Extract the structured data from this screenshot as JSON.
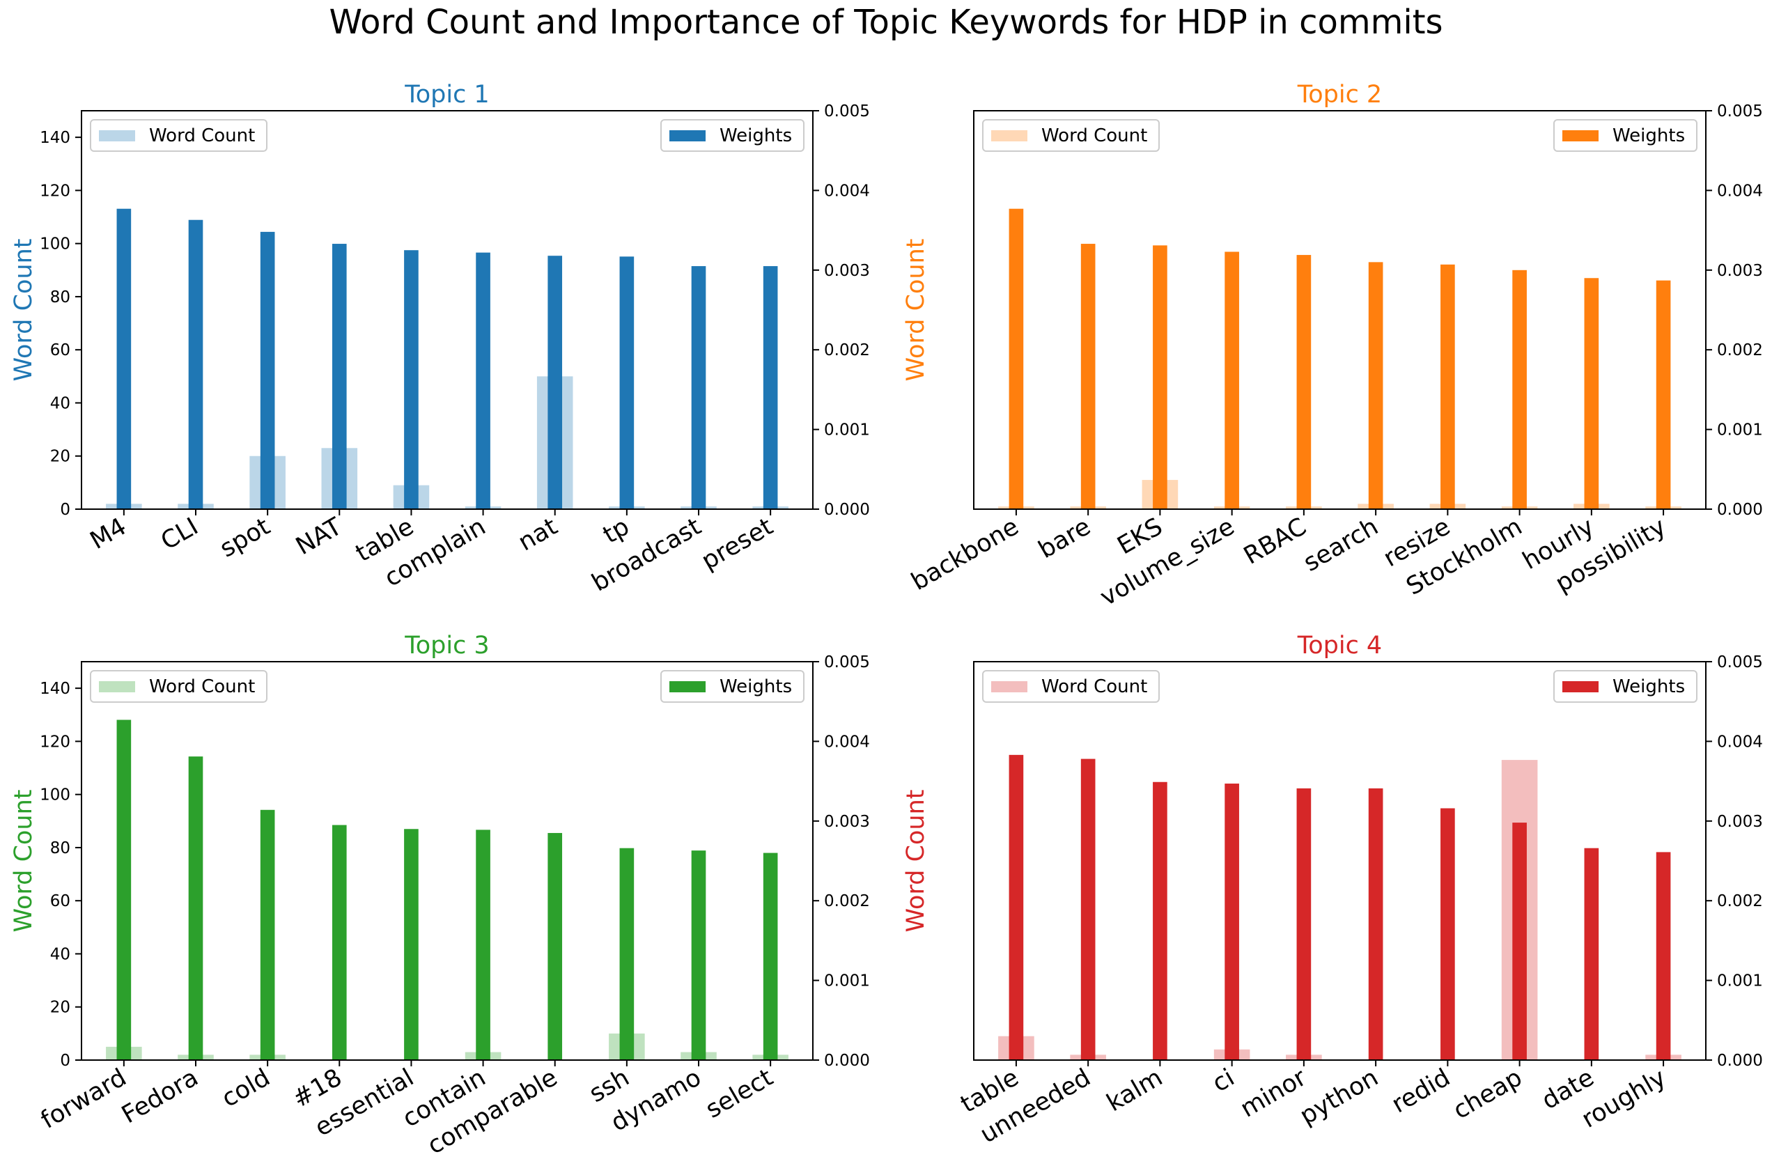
{
  "figure": {
    "title": "Word Count and Importance of Topic Keywords for HDP in commits"
  },
  "chart_data": [
    {
      "type": "bar",
      "title": "Topic 1",
      "color": "#1f77b4",
      "ylabel": "Word Count",
      "ylim": [
        0,
        150
      ],
      "y_ticks": [
        0,
        20,
        40,
        60,
        80,
        100,
        120,
        140
      ],
      "y2lim": [
        0,
        0.005
      ],
      "y2_ticks": [
        "0.000",
        "0.001",
        "0.002",
        "0.003",
        "0.004",
        "0.005"
      ],
      "legend_left": "top-left",
      "legend_right": "top-right",
      "categories": [
        "M4",
        "CLI",
        "spot",
        "NAT",
        "table",
        "complain",
        "nat",
        "tp",
        "broadcast",
        "preset"
      ],
      "series": [
        {
          "name": "Word Count",
          "axis": "left",
          "opacity": 0.3,
          "values": [
            2,
            2,
            20,
            23,
            9,
            1,
            50,
            1,
            1,
            1
          ]
        },
        {
          "name": "Weights",
          "axis": "right",
          "opacity": 1.0,
          "values": [
            0.00377,
            0.00363,
            0.00348,
            0.00333,
            0.00325,
            0.00322,
            0.00318,
            0.00317,
            0.00305,
            0.00305
          ]
        }
      ]
    },
    {
      "type": "bar",
      "title": "Topic 2",
      "color": "#ff7f0e",
      "ylabel": "Word Count",
      "ylim": [
        0,
        150
      ],
      "y_ticks": [],
      "y2lim": [
        0,
        0.005
      ],
      "y2_ticks": [
        "0.000",
        "0.001",
        "0.002",
        "0.003",
        "0.004",
        "0.005"
      ],
      "legend_left": "top-left",
      "legend_right": "top-right",
      "categories": [
        "backbone",
        "bare",
        "EKS",
        "volume_size",
        "RBAC",
        "search",
        "resize",
        "Stockholm",
        "hourly",
        "possibility"
      ],
      "series": [
        {
          "name": "Word Count",
          "axis": "left",
          "opacity": 0.3,
          "values": [
            1,
            1,
            11,
            1,
            1,
            2,
            2,
            1,
            2,
            1
          ]
        },
        {
          "name": "Weights",
          "axis": "right",
          "opacity": 1.0,
          "values": [
            0.00377,
            0.00333,
            0.00331,
            0.00323,
            0.00319,
            0.0031,
            0.00307,
            0.003,
            0.0029,
            0.00287
          ]
        }
      ]
    },
    {
      "type": "bar",
      "title": "Topic 3",
      "color": "#2ca02c",
      "ylabel": "Word Count",
      "ylim": [
        0,
        150
      ],
      "y_ticks": [
        0,
        20,
        40,
        60,
        80,
        100,
        120,
        140
      ],
      "y2lim": [
        0,
        0.005
      ],
      "y2_ticks": [
        "0.000",
        "0.001",
        "0.002",
        "0.003",
        "0.004",
        "0.005"
      ],
      "legend_left": "top-left",
      "legend_right": "top-right",
      "categories": [
        "forward",
        "Fedora",
        "cold",
        "#18",
        "essential",
        "contain",
        "comparable",
        "ssh",
        "dynamo",
        "select"
      ],
      "series": [
        {
          "name": "Word Count",
          "axis": "left",
          "opacity": 0.3,
          "values": [
            5,
            2,
            2,
            0,
            0,
            3,
            0,
            10,
            3,
            2
          ]
        },
        {
          "name": "Weights",
          "axis": "right",
          "opacity": 1.0,
          "values": [
            0.00427,
            0.00381,
            0.00314,
            0.00295,
            0.0029,
            0.00289,
            0.00285,
            0.00266,
            0.00263,
            0.0026
          ]
        }
      ]
    },
    {
      "type": "bar",
      "title": "Topic 4",
      "color": "#d62728",
      "ylabel": "Word Count",
      "ylim": [
        0,
        150
      ],
      "y_ticks": [],
      "y2lim": [
        0,
        0.005
      ],
      "y2_ticks": [
        "0.000",
        "0.001",
        "0.002",
        "0.003",
        "0.004",
        "0.005"
      ],
      "legend_left": "top-left",
      "legend_right": "top-right",
      "categories": [
        "table",
        "unneeded",
        "kalm",
        "ci",
        "minor",
        "python",
        "redid",
        "cheap",
        "date",
        "roughly"
      ],
      "series": [
        {
          "name": "Word Count",
          "axis": "left",
          "opacity": 0.3,
          "values": [
            9,
            2,
            0,
            4,
            2,
            0,
            0,
            113,
            0,
            2
          ]
        },
        {
          "name": "Weights",
          "axis": "right",
          "opacity": 1.0,
          "values": [
            0.00383,
            0.00378,
            0.00349,
            0.00347,
            0.00341,
            0.00341,
            0.00316,
            0.00298,
            0.00266,
            0.00261
          ]
        }
      ]
    }
  ]
}
